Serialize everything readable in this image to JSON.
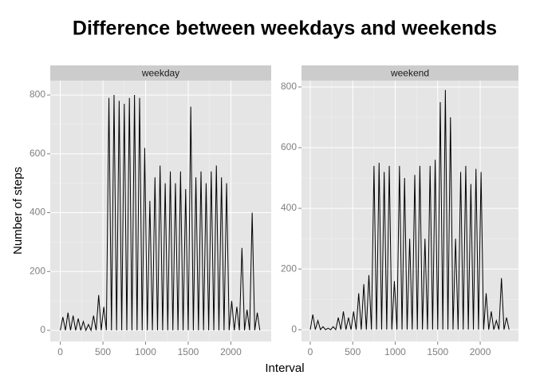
{
  "title": "Difference between weekdays and weekends",
  "x_label": "Interval",
  "y_label": "Number of steps",
  "chart_data": [
    {
      "type": "line",
      "strip": "weekday",
      "color": "#000000",
      "grid": true,
      "x": [
        0,
        30,
        60,
        90,
        120,
        150,
        180,
        210,
        240,
        270,
        300,
        330,
        360,
        390,
        420,
        450,
        480,
        510,
        540,
        570,
        600,
        630,
        660,
        690,
        720,
        750,
        780,
        810,
        840,
        870,
        900,
        930,
        960,
        990,
        1020,
        1050,
        1080,
        1110,
        1140,
        1170,
        1200,
        1230,
        1260,
        1290,
        1320,
        1350,
        1380,
        1410,
        1440,
        1470,
        1500,
        1530,
        1560,
        1590,
        1620,
        1650,
        1680,
        1710,
        1740,
        1770,
        1800,
        1830,
        1860,
        1890,
        1920,
        1950,
        1980,
        2010,
        2040,
        2070,
        2100,
        2130,
        2160,
        2190,
        2220,
        2250,
        2280,
        2310,
        2340
      ],
      "values": [
        0,
        45,
        0,
        60,
        0,
        50,
        0,
        40,
        0,
        30,
        0,
        20,
        0,
        50,
        0,
        120,
        0,
        80,
        0,
        790,
        0,
        800,
        0,
        780,
        0,
        770,
        0,
        790,
        0,
        800,
        0,
        790,
        0,
        620,
        0,
        440,
        0,
        520,
        0,
        560,
        0,
        500,
        0,
        540,
        0,
        500,
        0,
        540,
        0,
        480,
        0,
        760,
        0,
        520,
        0,
        540,
        0,
        500,
        0,
        540,
        0,
        560,
        0,
        520,
        0,
        500,
        0,
        100,
        0,
        80,
        0,
        280,
        0,
        70,
        0,
        400,
        0,
        60,
        0
      ],
      "xlim": [
        -118,
        2473
      ],
      "ylim": [
        -38,
        849
      ],
      "xticks": [
        0,
        500,
        1000,
        1500,
        2000
      ],
      "yticks": [
        0,
        200,
        400,
        600,
        800
      ]
    },
    {
      "type": "line",
      "strip": "weekend",
      "color": "#000000",
      "grid": true,
      "x": [
        0,
        30,
        60,
        90,
        120,
        150,
        180,
        210,
        240,
        270,
        300,
        330,
        360,
        390,
        420,
        450,
        480,
        510,
        540,
        570,
        600,
        630,
        660,
        690,
        720,
        750,
        780,
        810,
        840,
        870,
        900,
        930,
        960,
        990,
        1020,
        1050,
        1080,
        1110,
        1140,
        1170,
        1200,
        1230,
        1260,
        1290,
        1320,
        1350,
        1380,
        1410,
        1440,
        1470,
        1500,
        1530,
        1560,
        1590,
        1620,
        1650,
        1680,
        1710,
        1740,
        1770,
        1800,
        1830,
        1860,
        1890,
        1920,
        1950,
        1980,
        2010,
        2040,
        2070,
        2100,
        2130,
        2160,
        2190,
        2220,
        2250,
        2280,
        2310,
        2340
      ],
      "values": [
        0,
        50,
        0,
        30,
        0,
        10,
        0,
        5,
        0,
        10,
        0,
        40,
        0,
        60,
        0,
        40,
        0,
        60,
        0,
        120,
        0,
        150,
        0,
        180,
        0,
        540,
        0,
        550,
        0,
        520,
        0,
        540,
        0,
        160,
        0,
        540,
        0,
        500,
        0,
        300,
        0,
        510,
        0,
        540,
        0,
        300,
        0,
        540,
        0,
        560,
        0,
        750,
        0,
        790,
        0,
        700,
        0,
        300,
        0,
        520,
        0,
        540,
        0,
        480,
        0,
        530,
        0,
        520,
        0,
        120,
        0,
        60,
        0,
        30,
        0,
        170,
        0,
        40,
        0
      ],
      "xlim": [
        -103,
        2450
      ],
      "ylim": [
        -39,
        821
      ],
      "xticks": [
        0,
        500,
        1000,
        1500,
        2000
      ],
      "yticks": [
        0,
        200,
        400,
        600,
        800
      ]
    }
  ]
}
